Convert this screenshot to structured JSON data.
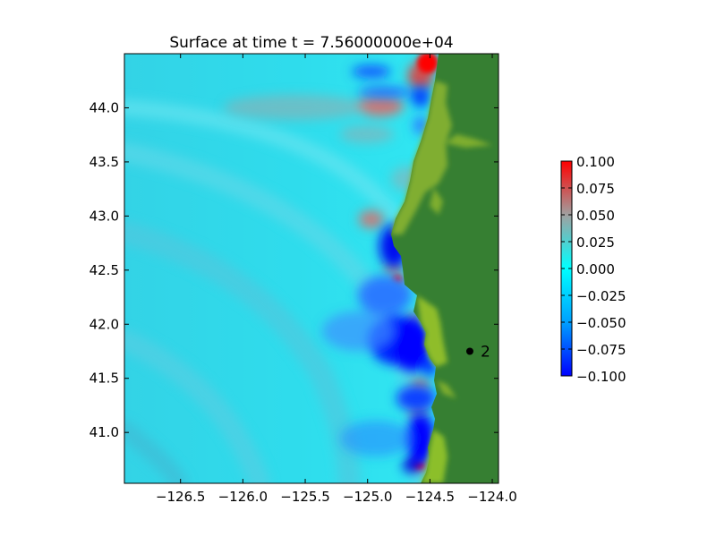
{
  "chart_data": {
    "type": "heatmap",
    "title": "Surface at time t = 7.56000000e+04",
    "xlabel": "",
    "ylabel": "",
    "xlim": [
      -126.95,
      -123.95
    ],
    "ylim": [
      40.53,
      44.5
    ],
    "x_ticks": [
      -126.5,
      -126.0,
      -125.5,
      -125.0,
      -124.5,
      -124.0
    ],
    "x_tick_labels": [
      "−126.5",
      "−126.0",
      "−125.5",
      "−125.0",
      "−124.5",
      "−124.0"
    ],
    "y_ticks": [
      41.0,
      41.5,
      42.0,
      42.5,
      43.0,
      43.5,
      44.0
    ],
    "y_tick_labels": [
      "41.0",
      "41.5",
      "42.0",
      "42.5",
      "43.0",
      "43.5",
      "44.0"
    ],
    "grid": false,
    "colorbar": {
      "vmin": -0.1,
      "vmax": 0.1,
      "ticks": [
        0.1,
        0.075,
        0.05,
        0.025,
        0.0,
        -0.025,
        -0.05,
        -0.075,
        -0.1
      ],
      "tick_labels": [
        "0.100",
        "0.075",
        "0.050",
        "0.025",
        "0.000",
        "−0.025",
        "−0.050",
        "−0.075",
        "−0.100"
      ],
      "colors": [
        "#0000ff",
        "#00d8ff",
        "#00ffff",
        "#c0c0c0",
        "#ff0000"
      ]
    },
    "gauges": [
      {
        "label": "2",
        "lon": -124.18,
        "lat": 41.75
      }
    ],
    "colors": {
      "land": "#367f32",
      "coast": "#8db82a",
      "ocean_background": "#38cfe6"
    }
  }
}
